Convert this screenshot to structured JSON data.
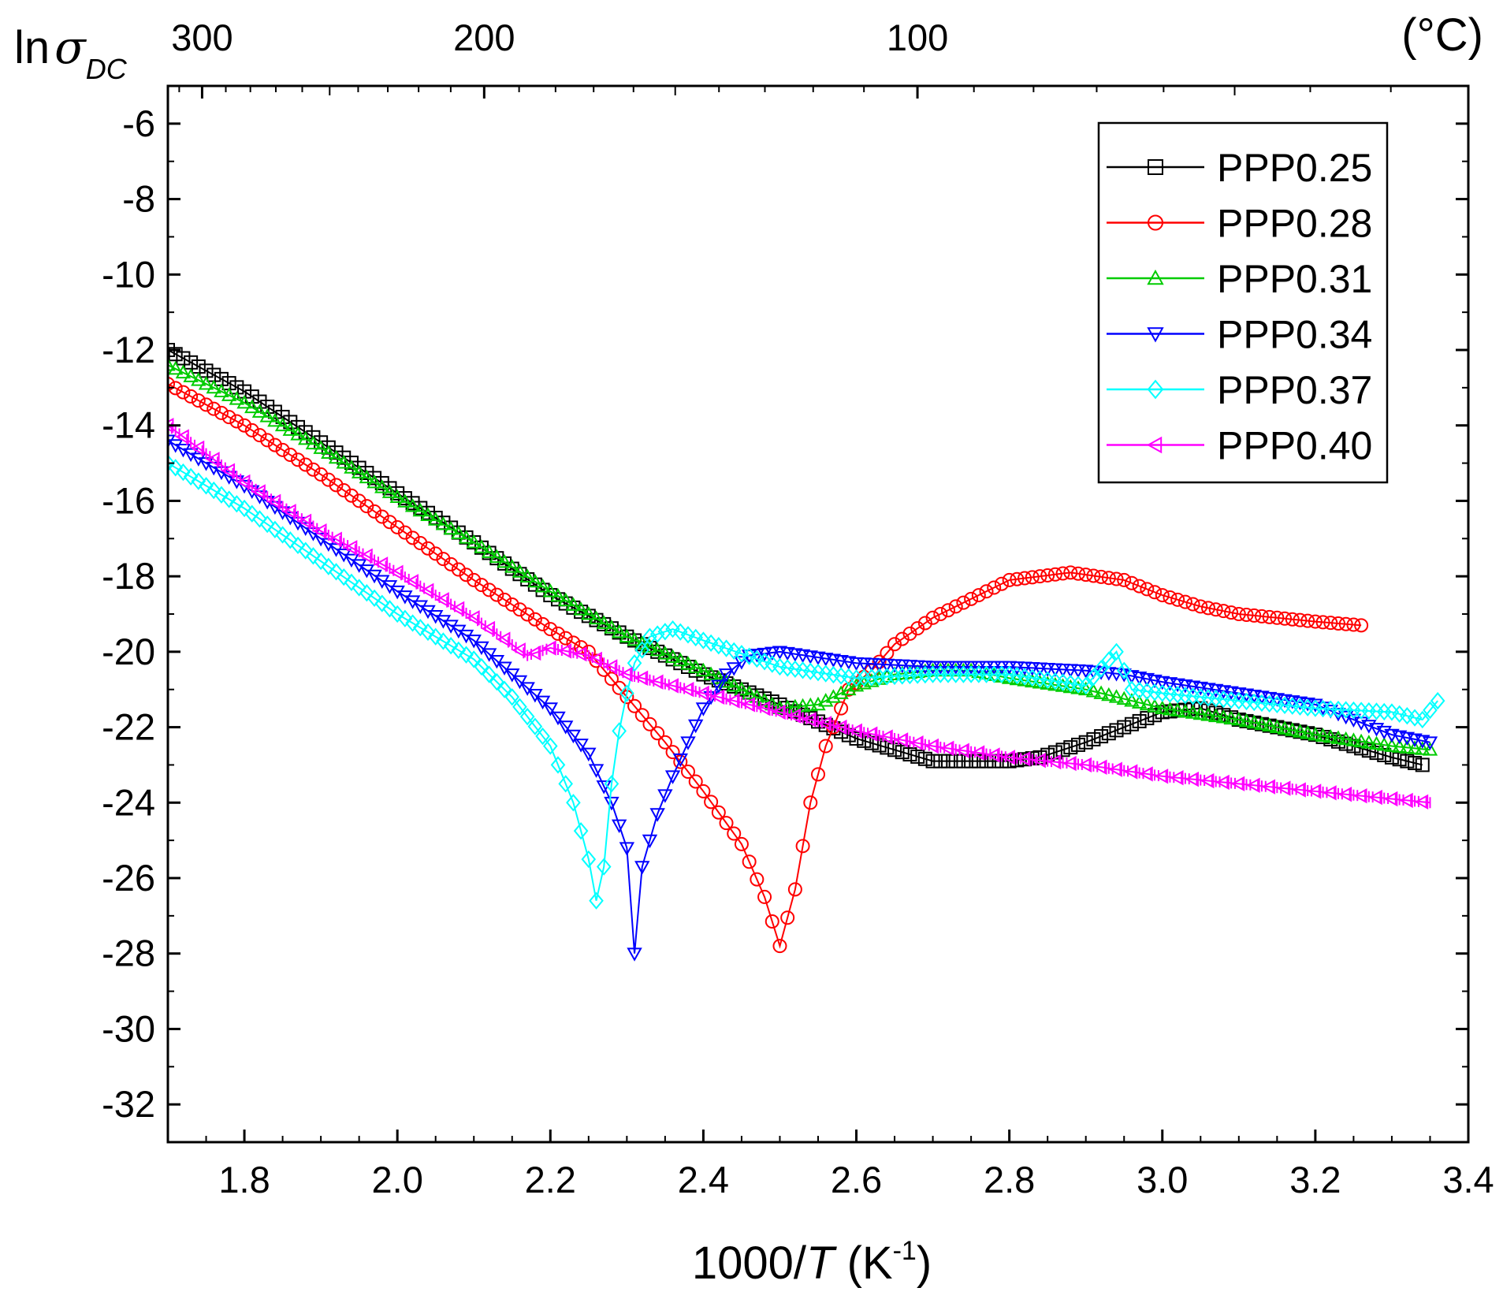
{
  "chart_data": {
    "type": "scatter",
    "xlabel": {
      "prefix": "1000/",
      "italic": "T",
      "suffix": " (K",
      "sup": "-1",
      "close": ")"
    },
    "ylabel": {
      "prefix": "ln",
      "symbol": "σ",
      "sub": "DC"
    },
    "top_axis_unit": "(°C)",
    "xlim": [
      1.7,
      3.4
    ],
    "ylim": [
      -33.0,
      -5.0
    ],
    "x_ticks": [
      "1.8",
      "2.0",
      "2.2",
      "2.4",
      "2.6",
      "2.8",
      "3.0",
      "3.2",
      "3.4"
    ],
    "y_ticks": [
      "-6",
      "-8",
      "-10",
      "-12",
      "-14",
      "-16",
      "-18",
      "-20",
      "-22",
      "-24",
      "-26",
      "-28",
      "-30",
      "-32"
    ],
    "top_ticks": [
      "300",
      "200",
      "100"
    ],
    "legend_position": "top-right",
    "grid": false,
    "series": [
      {
        "name": "PPP0.25",
        "color": "#000000",
        "marker": "square",
        "step": 0.01,
        "dash_every": 0,
        "points": [
          [
            1.7,
            -12.0
          ],
          [
            1.8,
            -13.1
          ],
          [
            1.9,
            -14.45
          ],
          [
            2.0,
            -15.8
          ],
          [
            2.1,
            -17.1
          ],
          [
            2.2,
            -18.5
          ],
          [
            2.3,
            -19.6
          ],
          [
            2.4,
            -20.6
          ],
          [
            2.5,
            -21.4
          ],
          [
            2.6,
            -22.3
          ],
          [
            2.7,
            -22.9
          ],
          [
            2.8,
            -22.9
          ],
          [
            2.84,
            -22.8
          ],
          [
            2.9,
            -22.4
          ],
          [
            3.0,
            -21.6
          ],
          [
            3.05,
            -21.5
          ],
          [
            3.1,
            -21.8
          ],
          [
            3.2,
            -22.2
          ],
          [
            3.3,
            -22.8
          ],
          [
            3.34,
            -23.0
          ]
        ]
      },
      {
        "name": "PPP0.28",
        "color": "#FF0000",
        "marker": "circle",
        "step": 0.01,
        "dash_every": 0,
        "points": [
          [
            1.7,
            -12.9
          ],
          [
            1.8,
            -14.0
          ],
          [
            1.9,
            -15.3
          ],
          [
            2.0,
            -16.7
          ],
          [
            2.1,
            -18.1
          ],
          [
            2.2,
            -19.4
          ],
          [
            2.25,
            -20.0
          ],
          [
            2.3,
            -21.2
          ],
          [
            2.35,
            -22.4
          ],
          [
            2.4,
            -23.7
          ],
          [
            2.45,
            -25.1
          ],
          [
            2.48,
            -26.5
          ],
          [
            2.5,
            -27.8
          ],
          [
            2.52,
            -26.3
          ],
          [
            2.54,
            -24.0
          ],
          [
            2.56,
            -22.5
          ],
          [
            2.59,
            -21.0
          ],
          [
            2.62,
            -20.5
          ],
          [
            2.65,
            -19.8
          ],
          [
            2.7,
            -19.1
          ],
          [
            2.8,
            -18.1
          ],
          [
            2.88,
            -17.9
          ],
          [
            2.95,
            -18.1
          ],
          [
            3.0,
            -18.5
          ],
          [
            3.05,
            -18.8
          ],
          [
            3.1,
            -19.0
          ],
          [
            3.2,
            -19.2
          ],
          [
            3.26,
            -19.3
          ]
        ]
      },
      {
        "name": "PPP0.31",
        "color": "#00CC00",
        "marker": "triangle-up",
        "step": 0.01,
        "dash_every": 0,
        "points": [
          [
            1.7,
            -12.4
          ],
          [
            1.8,
            -13.4
          ],
          [
            1.9,
            -14.6
          ],
          [
            2.0,
            -15.9
          ],
          [
            2.1,
            -17.1
          ],
          [
            2.2,
            -18.4
          ],
          [
            2.3,
            -19.6
          ],
          [
            2.4,
            -20.5
          ],
          [
            2.45,
            -21.0
          ],
          [
            2.5,
            -21.5
          ],
          [
            2.55,
            -21.4
          ],
          [
            2.6,
            -20.9
          ],
          [
            2.65,
            -20.6
          ],
          [
            2.7,
            -20.5
          ],
          [
            2.75,
            -20.5
          ],
          [
            2.8,
            -20.7
          ],
          [
            2.9,
            -21.0
          ],
          [
            3.0,
            -21.5
          ],
          [
            3.1,
            -21.8
          ],
          [
            3.2,
            -22.2
          ],
          [
            3.3,
            -22.5
          ],
          [
            3.35,
            -22.6
          ]
        ]
      },
      {
        "name": "PPP0.34",
        "color": "#0000FF",
        "marker": "triangle-down",
        "step": 0.01,
        "dash_every": 0,
        "points": [
          [
            1.7,
            -14.4
          ],
          [
            1.8,
            -15.6
          ],
          [
            1.9,
            -17.0
          ],
          [
            2.0,
            -18.4
          ],
          [
            2.1,
            -19.7
          ],
          [
            2.15,
            -20.6
          ],
          [
            2.2,
            -21.5
          ],
          [
            2.25,
            -22.7
          ],
          [
            2.28,
            -24.0
          ],
          [
            2.3,
            -25.2
          ],
          [
            2.31,
            -28.0
          ],
          [
            2.32,
            -25.7
          ],
          [
            2.34,
            -24.3
          ],
          [
            2.36,
            -23.3
          ],
          [
            2.4,
            -21.5
          ],
          [
            2.43,
            -20.6
          ],
          [
            2.46,
            -20.1
          ],
          [
            2.5,
            -20.0
          ],
          [
            2.6,
            -20.3
          ],
          [
            2.7,
            -20.4
          ],
          [
            2.8,
            -20.4
          ],
          [
            2.9,
            -20.5
          ],
          [
            2.95,
            -20.6
          ],
          [
            3.0,
            -20.8
          ],
          [
            3.1,
            -21.1
          ],
          [
            3.2,
            -21.4
          ],
          [
            3.3,
            -22.2
          ],
          [
            3.35,
            -22.4
          ]
        ]
      },
      {
        "name": "PPP0.37",
        "color": "#00FFFF",
        "marker": "diamond",
        "step": 0.01,
        "dash_every": 0,
        "points": [
          [
            1.7,
            -15.0
          ],
          [
            1.8,
            -16.2
          ],
          [
            1.9,
            -17.6
          ],
          [
            2.0,
            -19.0
          ],
          [
            2.1,
            -20.2
          ],
          [
            2.15,
            -21.2
          ],
          [
            2.2,
            -22.5
          ],
          [
            2.23,
            -24.0
          ],
          [
            2.25,
            -25.5
          ],
          [
            2.26,
            -26.6
          ],
          [
            2.27,
            -25.7
          ],
          [
            2.28,
            -23.5
          ],
          [
            2.29,
            -22.1
          ],
          [
            2.3,
            -21.1
          ],
          [
            2.31,
            -20.3
          ],
          [
            2.33,
            -19.6
          ],
          [
            2.36,
            -19.4
          ],
          [
            2.4,
            -19.7
          ],
          [
            2.5,
            -20.4
          ],
          [
            2.6,
            -20.7
          ],
          [
            2.7,
            -20.6
          ],
          [
            2.8,
            -20.6
          ],
          [
            2.9,
            -20.9
          ],
          [
            2.94,
            -20.0
          ],
          [
            2.96,
            -21.0
          ],
          [
            3.0,
            -21.1
          ],
          [
            3.1,
            -21.3
          ],
          [
            3.2,
            -21.5
          ],
          [
            3.3,
            -21.6
          ],
          [
            3.34,
            -21.8
          ],
          [
            3.36,
            -21.3
          ]
        ]
      },
      {
        "name": "PPP0.40",
        "color": "#FF00FF",
        "marker": "triangle-left",
        "step": 0.005,
        "dash_every": 4,
        "points": [
          [
            1.7,
            -14.0
          ],
          [
            1.8,
            -15.5
          ],
          [
            1.9,
            -16.8
          ],
          [
            2.0,
            -17.9
          ],
          [
            2.1,
            -19.1
          ],
          [
            2.17,
            -20.1
          ],
          [
            2.2,
            -19.9
          ],
          [
            2.25,
            -20.1
          ],
          [
            2.3,
            -20.6
          ],
          [
            2.4,
            -21.1
          ],
          [
            2.5,
            -21.6
          ],
          [
            2.6,
            -22.1
          ],
          [
            2.7,
            -22.5
          ],
          [
            2.8,
            -22.8
          ],
          [
            2.9,
            -23.0
          ],
          [
            3.0,
            -23.3
          ],
          [
            3.1,
            -23.5
          ],
          [
            3.2,
            -23.7
          ],
          [
            3.3,
            -23.9
          ],
          [
            3.35,
            -24.0
          ]
        ]
      }
    ]
  }
}
